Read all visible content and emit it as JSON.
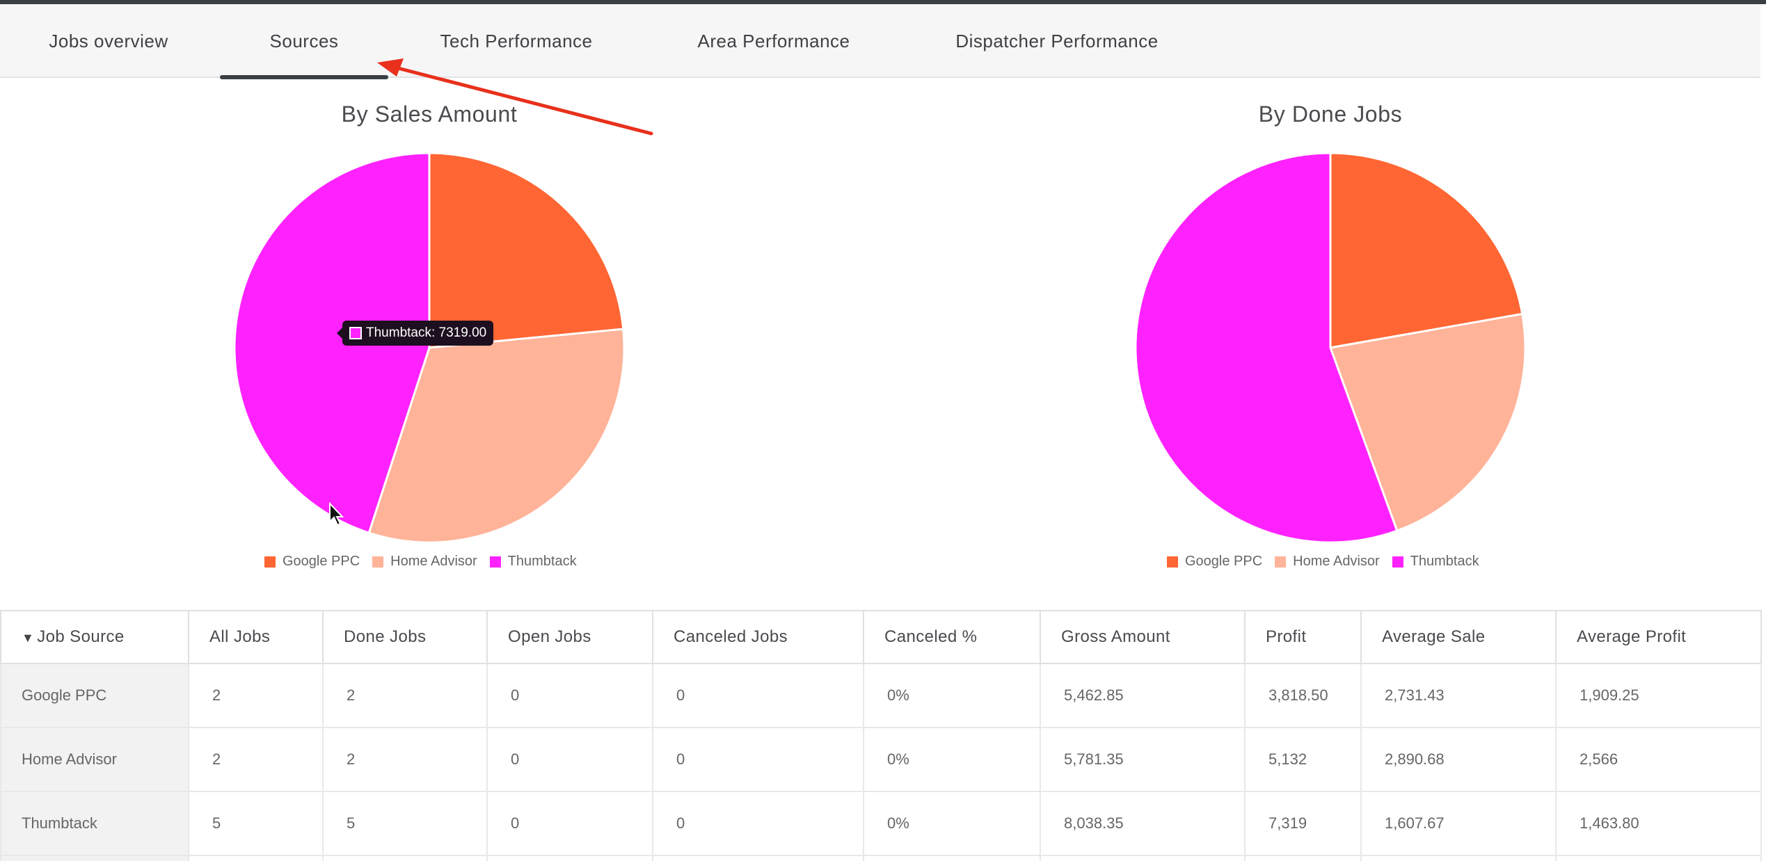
{
  "tabs": [
    {
      "label": "Jobs overview",
      "active": false
    },
    {
      "label": "Sources",
      "active": true
    },
    {
      "label": "Tech Performance",
      "active": false
    },
    {
      "label": "Area Performance",
      "active": false
    },
    {
      "label": "Dispatcher Performance",
      "active": false
    }
  ],
  "colors": {
    "google_ppc": "#ff6633",
    "home_advisor": "#ffb399",
    "thumbtack": "#ff22ff",
    "accent": "#3a3f44",
    "annotation_arrow": "#e8301c"
  },
  "chart_data": [
    {
      "type": "pie",
      "title": "By Sales Amount",
      "categories": [
        "Google PPC",
        "Home Advisor",
        "Thumbtack"
      ],
      "values": [
        3818.5,
        5132,
        7319
      ],
      "legend": "bottom",
      "tooltip": {
        "label": "Thumbtack: 7319.00"
      }
    },
    {
      "type": "pie",
      "title": "By Done Jobs",
      "categories": [
        "Google PPC",
        "Home Advisor",
        "Thumbtack"
      ],
      "values": [
        2,
        2,
        5
      ],
      "legend": "bottom"
    }
  ],
  "table": {
    "sort_icon": "sort-desc-icon",
    "columns": [
      "Job Source",
      "All Jobs",
      "Done Jobs",
      "Open Jobs",
      "Canceled Jobs",
      "Canceled %",
      "Gross Amount",
      "Profit",
      "Average Sale",
      "Average Profit"
    ],
    "rows": [
      [
        "Google PPC",
        "2",
        "2",
        "0",
        "0",
        "0%",
        "5,462.85",
        "3,818.50",
        "2,731.43",
        "1,909.25"
      ],
      [
        "Home Advisor",
        "2",
        "2",
        "0",
        "0",
        "0%",
        "5,781.35",
        "5,132",
        "2,890.68",
        "2,566"
      ],
      [
        "Thumbtack",
        "5",
        "5",
        "0",
        "0",
        "0%",
        "8,038.35",
        "7,319",
        "1,607.67",
        "1,463.80"
      ]
    ]
  }
}
